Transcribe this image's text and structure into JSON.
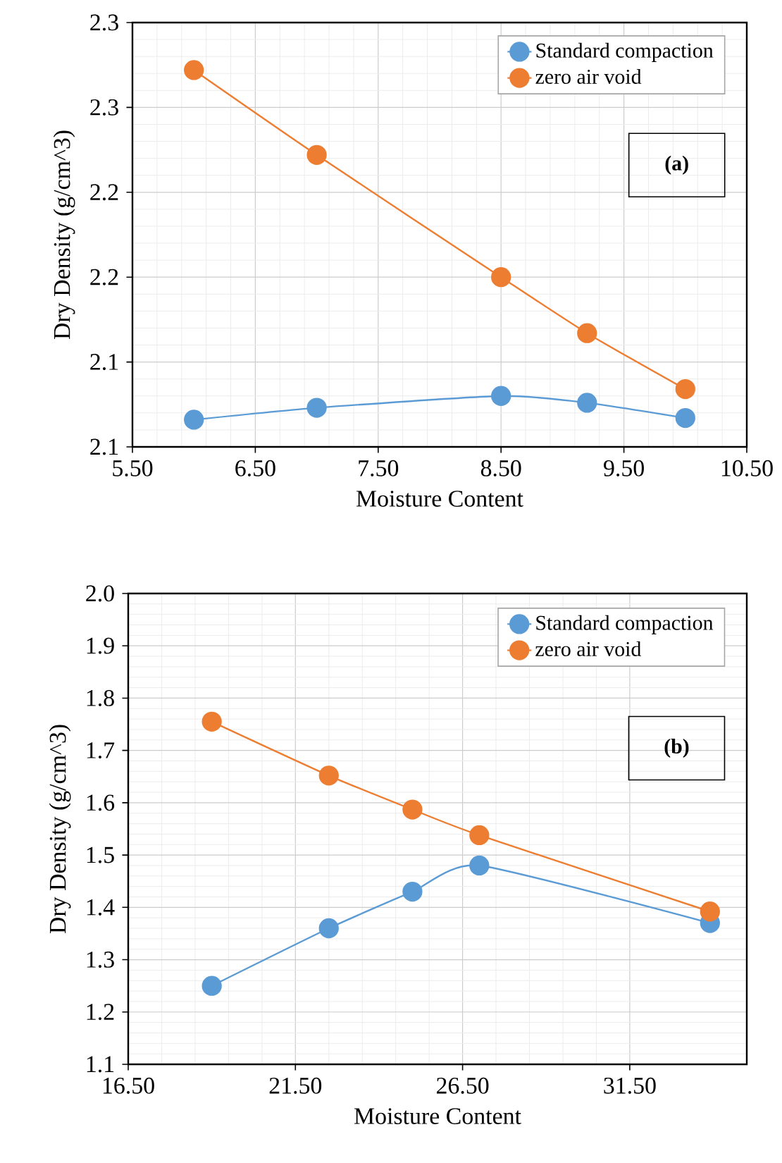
{
  "chart_data": [
    {
      "type": "line",
      "xlabel": "Moisture Content",
      "ylabel": "Dry Density (g/cm^3)",
      "xlim": [
        5.5,
        10.5
      ],
      "xticks": [
        {
          "value": 5.5,
          "label": "5.50"
        },
        {
          "value": 6.5,
          "label": "6.50"
        },
        {
          "value": 7.5,
          "label": "7.50"
        },
        {
          "value": 8.5,
          "label": "8.50"
        },
        {
          "value": 9.5,
          "label": "9.50"
        },
        {
          "value": 10.5,
          "label": "10.50"
        }
      ],
      "ylim": [
        2.05,
        2.3
      ],
      "yticks": [
        {
          "value": 2.05,
          "label": "2.1"
        },
        {
          "value": 2.1,
          "label": "2.1"
        },
        {
          "value": 2.15,
          "label": "2.2"
        },
        {
          "value": 2.2,
          "label": "2.2"
        },
        {
          "value": 2.25,
          "label": "2.3"
        },
        {
          "value": 2.3,
          "label": "2.3"
        }
      ],
      "series": [
        {
          "name": "Standard compaction",
          "color": "#5b9bd5",
          "x": [
            6.0,
            7.0,
            8.5,
            9.2,
            10.0
          ],
          "values": [
            2.066,
            2.073,
            2.08,
            2.076,
            2.067
          ]
        },
        {
          "name": "zero air void",
          "color": "#ed7d31",
          "x": [
            6.0,
            7.0,
            8.5,
            9.2,
            10.0
          ],
          "values": [
            2.272,
            2.222,
            2.15,
            2.117,
            2.084
          ]
        }
      ],
      "marker": "circle",
      "grid": true,
      "legend": "top right",
      "annotations": [
        "(a)"
      ]
    },
    {
      "type": "line",
      "xlabel": "Moisture Content",
      "ylabel": "Dry Density (g/cm^3)",
      "xlim": [
        16.5,
        35
      ],
      "xticks": [
        {
          "value": 16.5,
          "label": "16.50"
        },
        {
          "value": 21.5,
          "label": "21.50"
        },
        {
          "value": 26.5,
          "label": "26.50"
        },
        {
          "value": 31.5,
          "label": "31.50"
        }
      ],
      "ylim": [
        1.1,
        2.0
      ],
      "yticks": [
        {
          "value": 1.1,
          "label": "1.1"
        },
        {
          "value": 1.2,
          "label": "1.2"
        },
        {
          "value": 1.3,
          "label": "1.3"
        },
        {
          "value": 1.4,
          "label": "1.4"
        },
        {
          "value": 1.5,
          "label": "1.5"
        },
        {
          "value": 1.6,
          "label": "1.6"
        },
        {
          "value": 1.7,
          "label": "1.7"
        },
        {
          "value": 1.8,
          "label": "1.8"
        },
        {
          "value": 1.9,
          "label": "1.9"
        },
        {
          "value": 2.0,
          "label": "2.0"
        }
      ],
      "series": [
        {
          "name": "Standard compaction",
          "color": "#5b9bd5",
          "x": [
            19.0,
            22.5,
            25.0,
            27.0,
            33.9
          ],
          "values": [
            1.25,
            1.36,
            1.43,
            1.48,
            1.37
          ]
        },
        {
          "name": "zero air void",
          "color": "#ed7d31",
          "x": [
            19.0,
            22.5,
            25.0,
            27.0,
            33.9
          ],
          "values": [
            1.755,
            1.652,
            1.587,
            1.538,
            1.392
          ]
        }
      ],
      "marker": "circle",
      "grid": true,
      "legend": "top right",
      "annotations": [
        "(b)"
      ]
    }
  ]
}
